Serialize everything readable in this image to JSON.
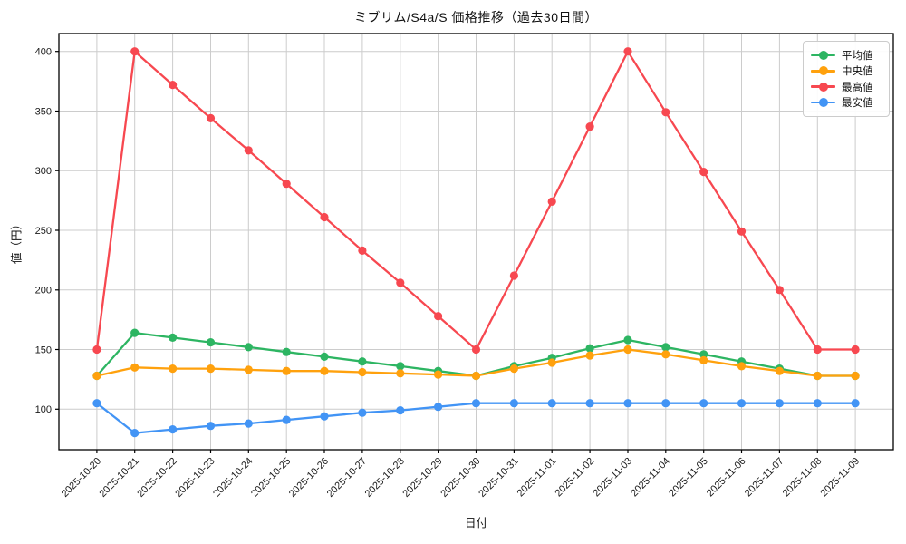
{
  "chart_data": {
    "type": "line",
    "title": "ミブリム/S4a/S 価格推移（過去30日間）",
    "xlabel": "日付",
    "ylabel": "値（円）",
    "grid": true,
    "legend_position": "upper right",
    "ylim": [
      66,
      415
    ],
    "yticks": [
      100,
      150,
      200,
      250,
      300,
      350,
      400
    ],
    "x": [
      "2025-10-20",
      "2025-10-21",
      "2025-10-22",
      "2025-10-23",
      "2025-10-24",
      "2025-10-25",
      "2025-10-26",
      "2025-10-27",
      "2025-10-28",
      "2025-10-29",
      "2025-10-30",
      "2025-10-31",
      "2025-11-01",
      "2025-11-02",
      "2025-11-03",
      "2025-11-04",
      "2025-11-05",
      "2025-11-06",
      "2025-11-07",
      "2025-11-08",
      "2025-11-09"
    ],
    "series": [
      {
        "id": "average",
        "name": "平均値",
        "color": "#2db562",
        "values": [
          128,
          164,
          160,
          156,
          152,
          148,
          144,
          140,
          136,
          132,
          128,
          136,
          143,
          151,
          158,
          152,
          146,
          140,
          134,
          128,
          128
        ]
      },
      {
        "id": "median",
        "name": "中央値",
        "color": "#ffa10d",
        "values": [
          128,
          135,
          134,
          134,
          133,
          132,
          132,
          131,
          130,
          129,
          128,
          134,
          139,
          145,
          150,
          146,
          141,
          136,
          132,
          128,
          128
        ]
      },
      {
        "id": "max",
        "name": "最高値",
        "color": "#f74850",
        "values": [
          150,
          400,
          372,
          344,
          317,
          289,
          261,
          233,
          206,
          178,
          150,
          212,
          274,
          337,
          400,
          349,
          299,
          249,
          200,
          150,
          150
        ]
      },
      {
        "id": "min",
        "name": "最安値",
        "color": "#4294f5",
        "values": [
          105,
          80,
          83,
          86,
          88,
          91,
          94,
          97,
          99,
          102,
          105,
          105,
          105,
          105,
          105,
          105,
          105,
          105,
          105,
          105,
          105
        ]
      }
    ],
    "colors": {
      "grid": "#cccccc",
      "spine": "#000000",
      "tick_label": "#1a1a1a",
      "background": "#ffffff"
    }
  }
}
